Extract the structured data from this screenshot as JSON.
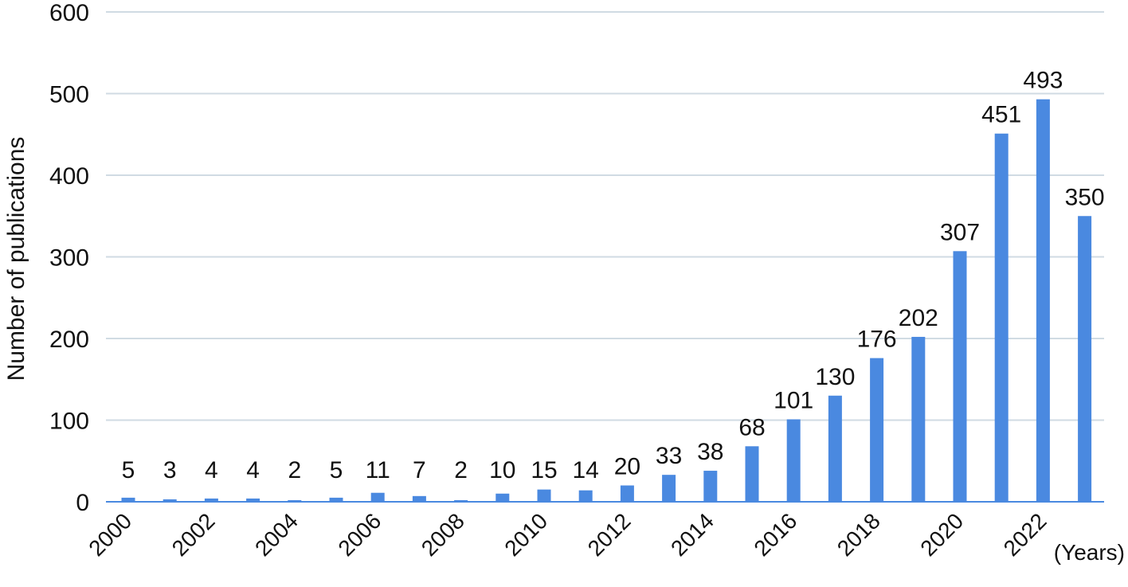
{
  "chart_data": {
    "type": "bar",
    "title": "",
    "xlabel": "(Years)",
    "ylabel": "Number of publications",
    "ylim": [
      0,
      600
    ],
    "yticks": [
      0,
      100,
      200,
      300,
      400,
      500,
      600
    ],
    "grid": true,
    "legend": "none",
    "bar_color": "#4a89e0",
    "grid_color": "#d0dbe3",
    "categories": [
      "2000",
      "2001",
      "2002",
      "2003",
      "2004",
      "2005",
      "2006",
      "2007",
      "2008",
      "2009",
      "2010",
      "2011",
      "2012",
      "2013",
      "2014",
      "2015",
      "2016",
      "2017",
      "2018",
      "2019",
      "2020",
      "2021",
      "2022",
      "2023"
    ],
    "tick_labels": [
      "2000",
      "",
      "2002",
      "",
      "2004",
      "",
      "2006",
      "",
      "2008",
      "",
      "2010",
      "",
      "2012",
      "",
      "2014",
      "",
      "2016",
      "",
      "2018",
      "",
      "2020",
      "",
      "2022",
      ""
    ],
    "values": [
      5,
      3,
      4,
      4,
      2,
      5,
      11,
      7,
      2,
      10,
      15,
      14,
      20,
      33,
      38,
      68,
      101,
      130,
      176,
      202,
      307,
      451,
      493,
      350
    ]
  }
}
